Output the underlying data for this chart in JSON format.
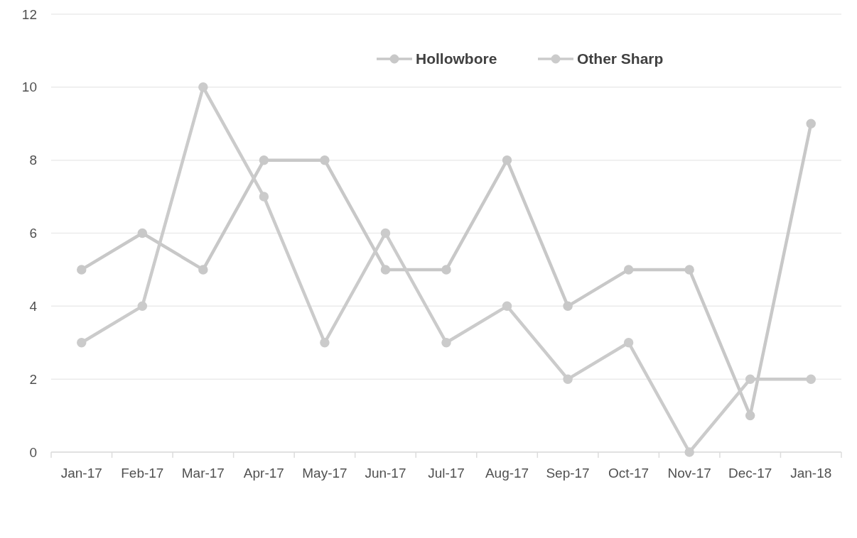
{
  "chart_data": {
    "type": "line",
    "categories": [
      "Jan-17",
      "Feb-17",
      "Mar-17",
      "Apr-17",
      "May-17",
      "Jun-17",
      "Jul-17",
      "Aug-17",
      "Sep-17",
      "Oct-17",
      "Nov-17",
      "Dec-17",
      "Jan-18"
    ],
    "series": [
      {
        "name": "Hollowbore",
        "color": "#c8c8c8",
        "values": [
          5,
          6,
          5,
          8,
          8,
          5,
          5,
          8,
          4,
          5,
          5,
          1,
          9
        ]
      },
      {
        "name": "Other Sharp",
        "color": "#cbcbcb",
        "values": [
          3,
          4,
          10,
          7,
          3,
          6,
          3,
          4,
          2,
          3,
          0,
          2,
          2
        ]
      }
    ],
    "ylim": [
      0,
      12
    ],
    "yticks": [
      0,
      2,
      4,
      6,
      8,
      10,
      12
    ],
    "grid": "y",
    "legend": "top",
    "marker": "circle",
    "line_style": "solid"
  }
}
